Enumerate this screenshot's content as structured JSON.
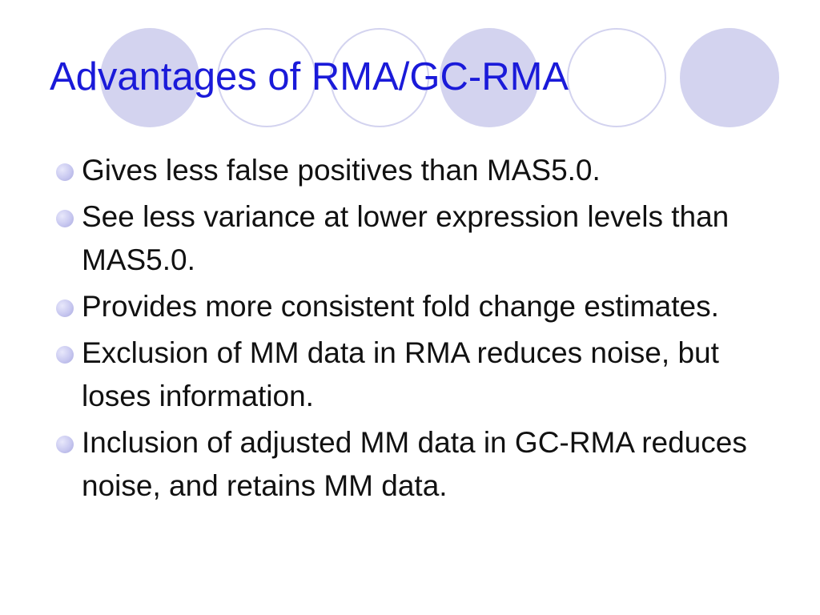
{
  "slide": {
    "title": "Advantages of RMA/GC-RMA",
    "bullets": [
      "Gives less false positives than MAS5.0.",
      "See less variance at lower expression levels than MAS5.0.",
      "Provides more consistent fold change estimates.",
      "Exclusion of MM data in RMA reduces noise, but loses information.",
      "Inclusion of adjusted MM data in GC-RMA reduces noise, and retains MM data."
    ]
  },
  "colors": {
    "title": "#1a1ad9",
    "text": "#111111",
    "circle_fill": "#d3d3ef",
    "circle_outline": "#d3d3ef",
    "bullet": "#c8c8f0"
  }
}
